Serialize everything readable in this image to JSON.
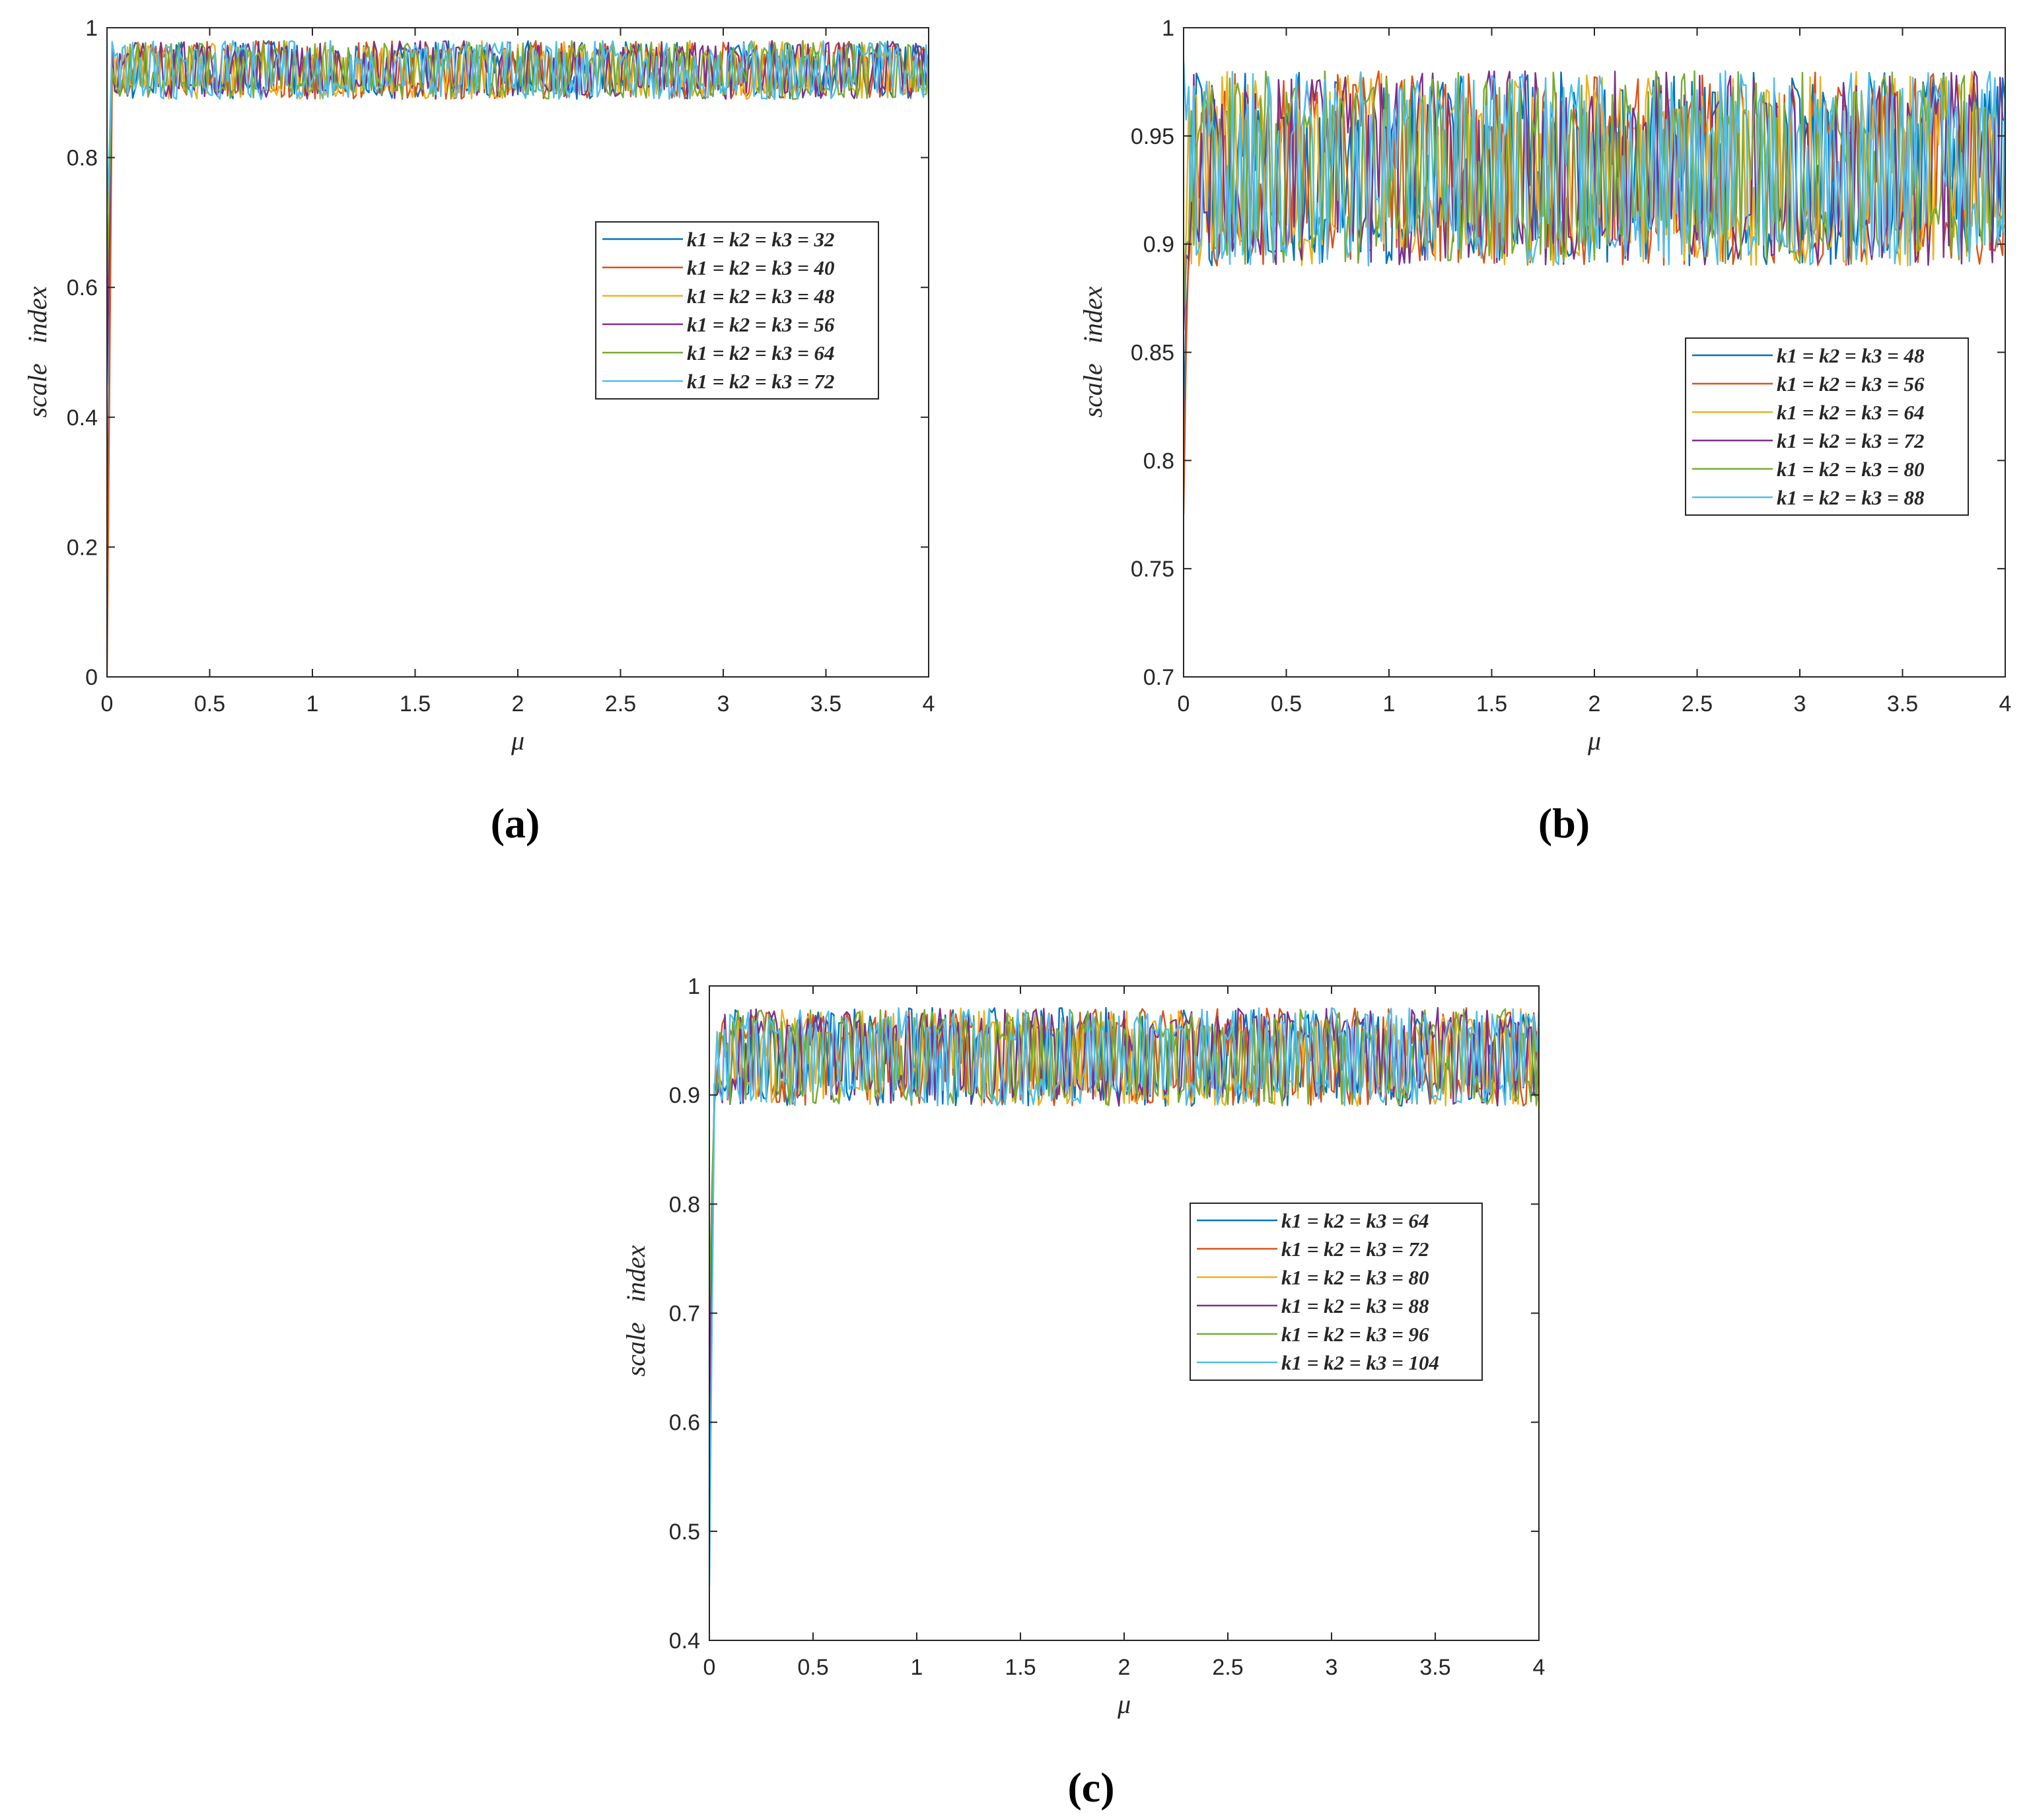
{
  "colors": [
    "#0072BD",
    "#D95319",
    "#EDB120",
    "#7E2F8E",
    "#77AC30",
    "#4DBEEE"
  ],
  "chart_data": [
    {
      "type": "line",
      "panel_label": "(a)",
      "xlabel": "μ",
      "ylabel": "scale   index",
      "xlim": [
        0,
        4
      ],
      "ylim": [
        0,
        1
      ],
      "xticks": [
        0,
        0.5,
        1,
        1.5,
        2,
        2.5,
        3,
        3.5,
        4
      ],
      "yticks": [
        0,
        0.2,
        0.4,
        0.6,
        0.8,
        1
      ],
      "legend_position": "center-right",
      "series_model": {
        "low": 0.89,
        "high": 0.98,
        "start_values": [
          0.14,
          0.0,
          0.5,
          0.45,
          0.6,
          0.72
        ]
      },
      "series": [
        {
          "name": "k1 = k2 = k3 = 32"
        },
        {
          "name": "k1 = k2 = k3 = 40"
        },
        {
          "name": "k1 = k2 = k3 = 48"
        },
        {
          "name": "k1 = k2 = k3 = 56"
        },
        {
          "name": "k1 = k2 = k3 = 64"
        },
        {
          "name": "k1 = k2 = k3 = 72"
        }
      ]
    },
    {
      "type": "line",
      "panel_label": "(b)",
      "xlabel": "μ",
      "ylabel": "scale   index",
      "xlim": [
        0,
        4
      ],
      "ylim": [
        0.7,
        1
      ],
      "xticks": [
        0,
        0.5,
        1,
        1.5,
        2,
        2.5,
        3,
        3.5,
        4
      ],
      "yticks": [
        0.7,
        0.75,
        0.8,
        0.85,
        0.9,
        0.95,
        1
      ],
      "legend_position": "center-right",
      "series_model": {
        "low": 0.89,
        "high": 0.98,
        "start_values": [
          0.81,
          0.775,
          0.88,
          0.86,
          0.87,
          0.985
        ]
      },
      "series": [
        {
          "name": "k1 = k2 = k3 = 48"
        },
        {
          "name": "k1 = k2 = k3 = 56"
        },
        {
          "name": "k1 = k2 = k3 = 64"
        },
        {
          "name": "k1 = k2 = k3 = 72"
        },
        {
          "name": "k1 = k2 = k3 = 80"
        },
        {
          "name": "k1 = k2 = k3 = 88"
        }
      ]
    },
    {
      "type": "line",
      "panel_label": "(c)",
      "xlabel": "μ",
      "ylabel": "scale   index",
      "xlim": [
        0,
        4
      ],
      "ylim": [
        0.4,
        1
      ],
      "xticks": [
        0,
        0.5,
        1,
        1.5,
        2,
        2.5,
        3,
        3.5,
        4
      ],
      "yticks": [
        0.4,
        0.5,
        0.6,
        0.7,
        0.8,
        0.9,
        1
      ],
      "legend_position": "center-right",
      "series_model": {
        "low": 0.89,
        "high": 0.98,
        "start_values": [
          0.58,
          0.62,
          0.66,
          0.6,
          0.7,
          0.45
        ]
      },
      "series": [
        {
          "name": "k1 = k2 = k3 = 64"
        },
        {
          "name": "k1 = k2 = k3 = 72"
        },
        {
          "name": "k1 = k2 = k3 = 80"
        },
        {
          "name": "k1 = k2 = k3 = 88"
        },
        {
          "name": "k1 = k2 = k3 = 96"
        },
        {
          "name": "k1 = k2 = k3 = 104"
        }
      ]
    }
  ]
}
